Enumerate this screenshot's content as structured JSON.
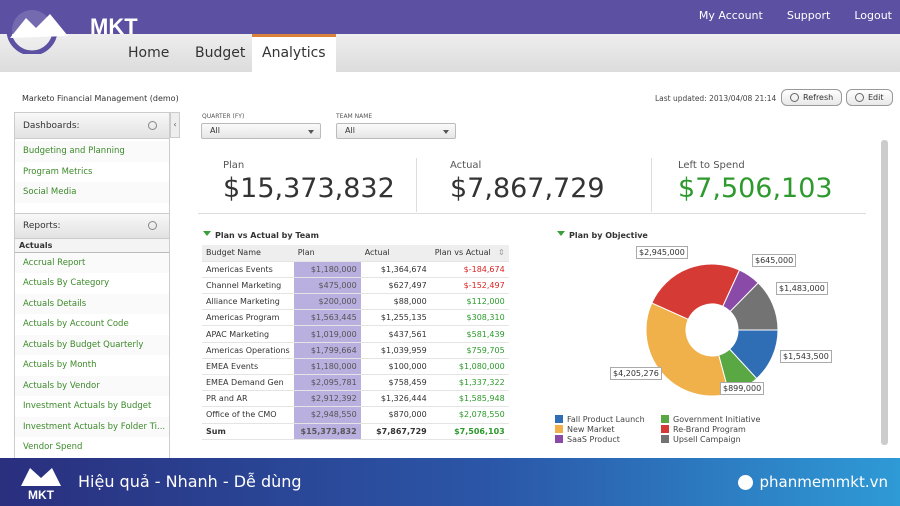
{
  "brand": {
    "logo_text": "MKT",
    "footer_logo_text": "MKT",
    "slogan": "Hiệu quả - Nhanh  - Dễ dùng",
    "website": "phanmemmkt.vn"
  },
  "top_links": [
    "My Account",
    "Support",
    "Logout"
  ],
  "tabs": [
    {
      "label": "Home"
    },
    {
      "label": "Budget"
    },
    {
      "label": "Analytics",
      "active": true
    }
  ],
  "app_title": "Marketo Financial Management (demo)",
  "last_updated": "Last updated: 2013/04/08 21:14",
  "buttons": {
    "refresh": "Refresh",
    "edit": "Edit"
  },
  "sidebar": {
    "dashboards_label": "Dashboards:",
    "dashboards": [
      "Budgeting and Planning",
      "Program Metrics",
      "Social Media"
    ],
    "reports_label": "Reports:",
    "group": "Actuals",
    "reports": [
      "Accrual Report",
      "Actuals By Category",
      "Actuals Details",
      "Actuals by Account Code",
      "Actuals by Budget Quarterly",
      "Actuals by Month",
      "Actuals by Vendor",
      "Investment Actuals by Budget",
      "Investment Actuals by Folder Ti...",
      "Vendor Spend"
    ]
  },
  "filters": [
    {
      "label": "QUARTER (FY)",
      "value": "All"
    },
    {
      "label": "TEAM NAME",
      "value": "All"
    }
  ],
  "kpis": [
    {
      "label": "Plan",
      "value": "$15,373,832"
    },
    {
      "label": "Actual",
      "value": "$7,867,729"
    },
    {
      "label": "Left to Spend",
      "value": "$7,506,103"
    }
  ],
  "table": {
    "title": "Plan vs Actual by Team",
    "columns": [
      "Budget Name",
      "Plan",
      "Actual",
      "Plan vs Actual"
    ],
    "rows": [
      [
        "Americas Events",
        "$1,180,000",
        "$1,364,674",
        "$-184,674"
      ],
      [
        "Channel Marketing",
        "$475,000",
        "$627,497",
        "$-152,497"
      ],
      [
        "Alliance Marketing",
        "$200,000",
        "$88,000",
        "$112,000"
      ],
      [
        "Americas Program",
        "$1,563,445",
        "$1,255,135",
        "$308,310"
      ],
      [
        "APAC Marketing",
        "$1,019,000",
        "$437,561",
        "$581,439"
      ],
      [
        "Americas Operations",
        "$1,799,664",
        "$1,039,959",
        "$759,705"
      ],
      [
        "EMEA Events",
        "$1,180,000",
        "$100,000",
        "$1,080,000"
      ],
      [
        "EMEA Demand Gen",
        "$2,095,781",
        "$758,459",
        "$1,337,322"
      ],
      [
        "PR and AR",
        "$2,912,392",
        "$1,326,444",
        "$1,585,948"
      ],
      [
        "Office of the CMO",
        "$2,948,550",
        "$870,000",
        "$2,078,550"
      ]
    ],
    "sum": [
      "Sum",
      "$15,373,832",
      "$7,867,729",
      "$7,506,103"
    ]
  },
  "chart_data": {
    "type": "pie",
    "donut": true,
    "title": "Plan by Objective",
    "legend": "bottom",
    "slices": [
      {
        "name": "Fall Product Launch",
        "value": 1543500,
        "label": "$1,543,500",
        "color": "#2f6db5"
      },
      {
        "name": "Government Initiative",
        "value": 899000,
        "label": "$899,000",
        "color": "#5aa844"
      },
      {
        "name": "New Market",
        "value": 4205276,
        "label": "$4,205,276",
        "color": "#f0b04a"
      },
      {
        "name": "Re-Brand Program",
        "value": 2945000,
        "label": "$2,945,000",
        "color": "#d63a35"
      },
      {
        "name": "SaaS Product",
        "value": 645000,
        "label": "$645,000",
        "color": "#8a4aa8"
      },
      {
        "name": "Upsell Campaign",
        "value": 1483000,
        "label": "$1,483,000",
        "color": "#737373"
      }
    ]
  }
}
